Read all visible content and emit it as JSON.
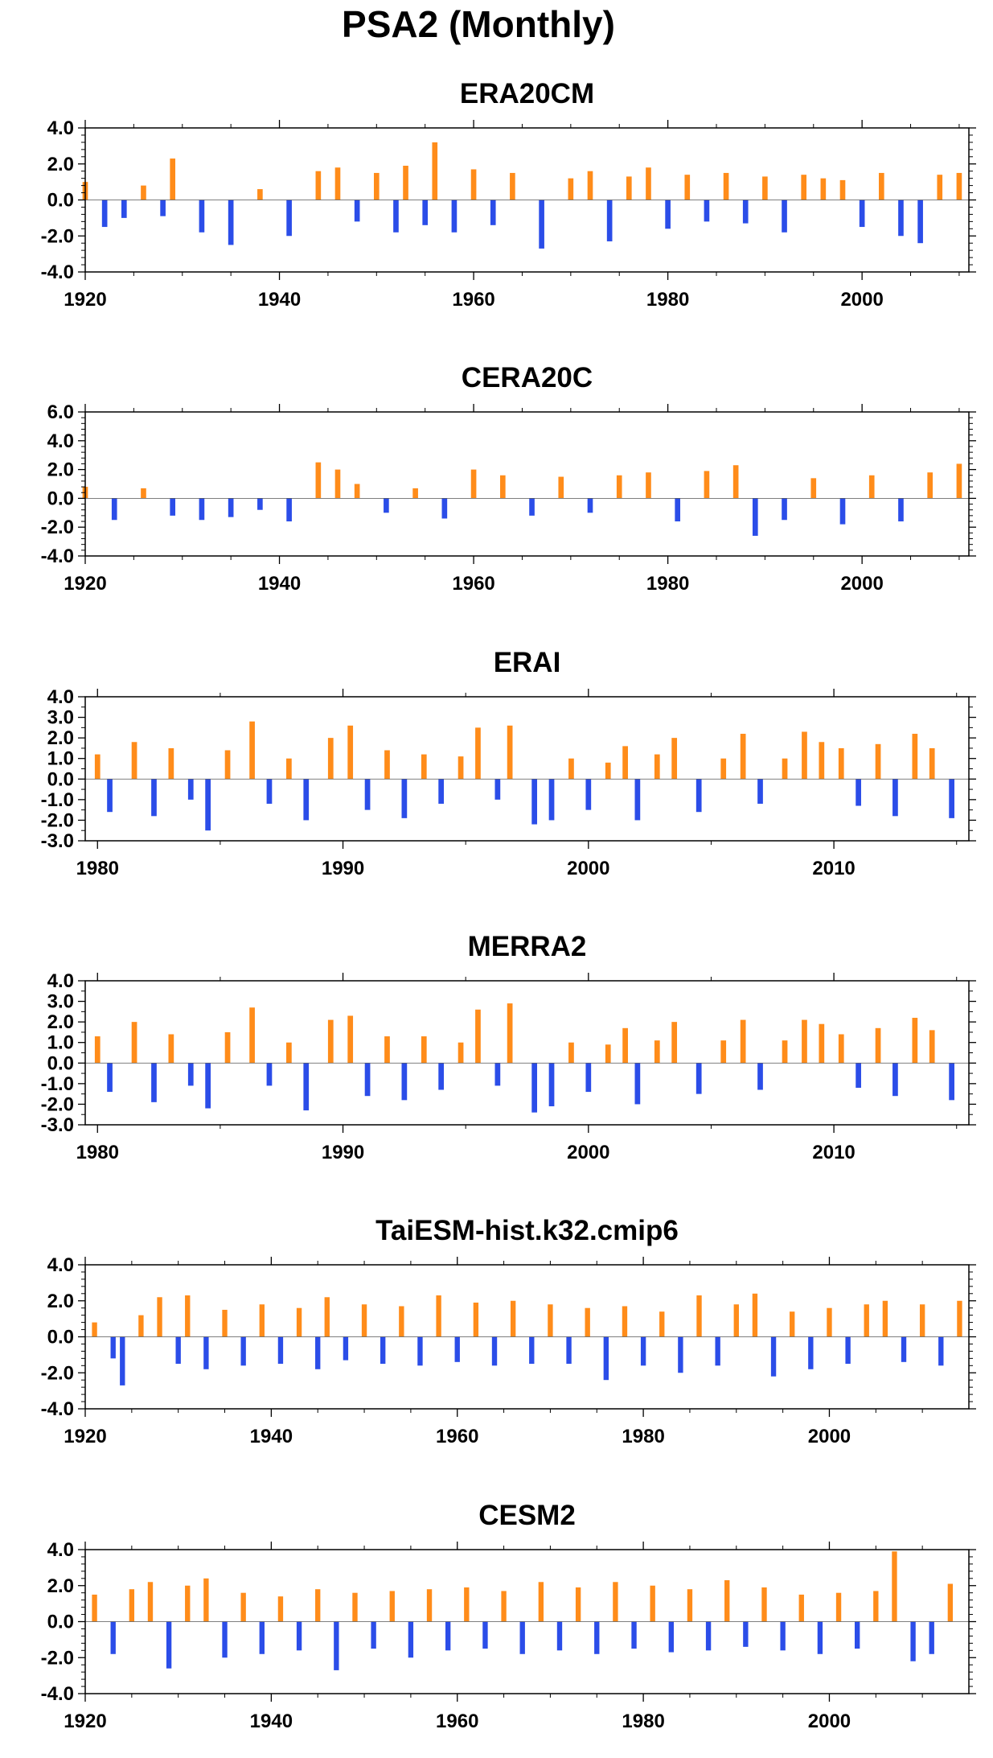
{
  "figure": {
    "title": "PSA2 (Monthly)",
    "positive_color": "#ff8c1a",
    "negative_color": "#2b4de8",
    "axis_color": "#000000"
  },
  "chart_data": [
    {
      "type": "bar",
      "title": "ERA20CM",
      "xlabel": "",
      "ylabel": "",
      "xlim": [
        1920,
        2011
      ],
      "ylim": [
        -4.0,
        4.0
      ],
      "xticks": [
        1920,
        1940,
        1960,
        1980,
        2000
      ],
      "yticks": [
        -4.0,
        -2.0,
        0.0,
        2.0,
        4.0
      ],
      "ytick_labels": [
        "-4.0",
        "-2.0",
        "0.0",
        "2.0",
        "4.0"
      ],
      "grid": false,
      "series": [
        {
          "x": [
            1920,
            1922,
            1924,
            1926,
            1928,
            1929,
            1932,
            1935,
            1938,
            1941,
            1944,
            1946,
            1948,
            1950,
            1952,
            1953,
            1955,
            1956,
            1958,
            1960,
            1962,
            1964,
            1967,
            1970,
            1972,
            1974,
            1976,
            1978,
            1980,
            1982,
            1984,
            1986,
            1988,
            1990,
            1992,
            1994,
            1996,
            1998,
            2000,
            2002,
            2004,
            2006,
            2008,
            2010
          ],
          "values": [
            1.0,
            -1.5,
            -1.0,
            0.8,
            -0.9,
            2.3,
            -1.8,
            -2.5,
            0.6,
            -2.0,
            1.6,
            1.8,
            -1.2,
            1.5,
            -1.8,
            1.9,
            -1.4,
            3.2,
            -1.8,
            1.7,
            -1.4,
            1.5,
            -2.7,
            1.2,
            1.6,
            -2.3,
            1.3,
            1.8,
            -1.6,
            1.4,
            -1.2,
            1.5,
            -1.3,
            1.3,
            -1.8,
            1.4,
            1.2,
            1.1,
            -1.5,
            1.5,
            -2.0,
            -2.4,
            1.4,
            1.5
          ]
        }
      ]
    },
    {
      "type": "bar",
      "title": "CERA20C",
      "xlabel": "",
      "ylabel": "",
      "xlim": [
        1920,
        2011
      ],
      "ylim": [
        -4.0,
        6.0
      ],
      "xticks": [
        1920,
        1940,
        1960,
        1980,
        2000
      ],
      "yticks": [
        -4.0,
        -2.0,
        0.0,
        2.0,
        4.0,
        6.0
      ],
      "ytick_labels": [
        "-4.0",
        "-2.0",
        "0.0",
        "2.0",
        "4.0",
        "6.0"
      ],
      "grid": false,
      "series": [
        {
          "x": [
            1920,
            1923,
            1926,
            1929,
            1932,
            1935,
            1938,
            1941,
            1944,
            1946,
            1948,
            1951,
            1954,
            1957,
            1960,
            1963,
            1966,
            1969,
            1972,
            1975,
            1978,
            1981,
            1984,
            1987,
            1989,
            1992,
            1995,
            1998,
            2001,
            2004,
            2007,
            2010
          ],
          "values": [
            0.8,
            -1.5,
            0.7,
            -1.2,
            -1.5,
            -1.3,
            -0.8,
            -1.6,
            2.5,
            2.0,
            1.0,
            -1.0,
            0.7,
            -1.4,
            2.0,
            1.6,
            -1.2,
            1.5,
            -1.0,
            1.6,
            1.8,
            -1.6,
            1.9,
            2.3,
            -2.6,
            -1.5,
            1.4,
            -1.8,
            1.6,
            -1.6,
            1.8,
            2.4
          ]
        }
      ]
    },
    {
      "type": "bar",
      "title": "ERAI",
      "xlabel": "",
      "ylabel": "",
      "xlim": [
        1979.5,
        2015.5
      ],
      "ylim": [
        -3.0,
        4.0
      ],
      "xticks": [
        1980,
        1990,
        2000,
        2010
      ],
      "yticks": [
        -3.0,
        -2.0,
        -1.0,
        0.0,
        1.0,
        2.0,
        3.0,
        4.0
      ],
      "ytick_labels": [
        "-3.0",
        "-2.0",
        "-1.0",
        "0.0",
        "1.0",
        "2.0",
        "3.0",
        "4.0"
      ],
      "grid": false,
      "series": [
        {
          "x": [
            1980.0,
            1980.5,
            1981.5,
            1982.3,
            1983.0,
            1983.8,
            1984.5,
            1985.3,
            1986.3,
            1987.0,
            1987.8,
            1988.5,
            1989.5,
            1990.3,
            1991.0,
            1991.8,
            1992.5,
            1993.3,
            1994.0,
            1994.8,
            1995.5,
            1996.3,
            1996.8,
            1997.8,
            1998.5,
            1999.3,
            2000.0,
            2000.8,
            2001.5,
            2002.0,
            2002.8,
            2003.5,
            2004.5,
            2005.5,
            2006.3,
            2007.0,
            2008.0,
            2008.8,
            2009.5,
            2010.3,
            2011.0,
            2011.8,
            2012.5,
            2013.3,
            2014.0,
            2014.8
          ],
          "values": [
            1.2,
            -1.6,
            1.8,
            -1.8,
            1.5,
            -1.0,
            -2.5,
            1.4,
            2.8,
            -1.2,
            1.0,
            -2.0,
            2.0,
            2.6,
            -1.5,
            1.4,
            -1.9,
            1.2,
            -1.2,
            1.1,
            2.5,
            -1.0,
            2.6,
            -2.2,
            -2.0,
            1.0,
            -1.5,
            0.8,
            1.6,
            -2.0,
            1.2,
            2.0,
            -1.6,
            1.0,
            2.2,
            -1.2,
            1.0,
            2.3,
            1.8,
            1.5,
            -1.3,
            1.7,
            -1.8,
            2.2,
            1.5,
            -1.9
          ]
        }
      ]
    },
    {
      "type": "bar",
      "title": "MERRA2",
      "xlabel": "",
      "ylabel": "",
      "xlim": [
        1979.5,
        2015.5
      ],
      "ylim": [
        -3.0,
        4.0
      ],
      "xticks": [
        1980,
        1990,
        2000,
        2010
      ],
      "yticks": [
        -3.0,
        -2.0,
        -1.0,
        0.0,
        1.0,
        2.0,
        3.0,
        4.0
      ],
      "ytick_labels": [
        "-3.0",
        "-2.0",
        "-1.0",
        "0.0",
        "1.0",
        "2.0",
        "3.0",
        "4.0"
      ],
      "grid": false,
      "series": [
        {
          "x": [
            1980.0,
            1980.5,
            1981.5,
            1982.3,
            1983.0,
            1983.8,
            1984.5,
            1985.3,
            1986.3,
            1987.0,
            1987.8,
            1988.5,
            1989.5,
            1990.3,
            1991.0,
            1991.8,
            1992.5,
            1993.3,
            1994.0,
            1994.8,
            1995.5,
            1996.3,
            1996.8,
            1997.8,
            1998.5,
            1999.3,
            2000.0,
            2000.8,
            2001.5,
            2002.0,
            2002.8,
            2003.5,
            2004.5,
            2005.5,
            2006.3,
            2007.0,
            2008.0,
            2008.8,
            2009.5,
            2010.3,
            2011.0,
            2011.8,
            2012.5,
            2013.3,
            2014.0,
            2014.8
          ],
          "values": [
            1.3,
            -1.4,
            2.0,
            -1.9,
            1.4,
            -1.1,
            -2.2,
            1.5,
            2.7,
            -1.1,
            1.0,
            -2.3,
            2.1,
            2.3,
            -1.6,
            1.3,
            -1.8,
            1.3,
            -1.3,
            1.0,
            2.6,
            -1.1,
            2.9,
            -2.4,
            -2.1,
            1.0,
            -1.4,
            0.9,
            1.7,
            -2.0,
            1.1,
            2.0,
            -1.5,
            1.1,
            2.1,
            -1.3,
            1.1,
            2.1,
            1.9,
            1.4,
            -1.2,
            1.7,
            -1.6,
            2.2,
            1.6,
            -1.8
          ]
        }
      ]
    },
    {
      "type": "bar",
      "title": "TaiESM-hist.k32.cmip6",
      "xlabel": "",
      "ylabel": "",
      "xlim": [
        1920,
        2015
      ],
      "ylim": [
        -4.0,
        4.0
      ],
      "xticks": [
        1920,
        1940,
        1960,
        1980,
        2000
      ],
      "yticks": [
        -4.0,
        -2.0,
        0.0,
        2.0,
        4.0
      ],
      "ytick_labels": [
        "-4.0",
        "-2.0",
        "0.0",
        "2.0",
        "4.0"
      ],
      "grid": false,
      "series": [
        {
          "x": [
            1921,
            1923,
            1924,
            1926,
            1928,
            1930,
            1931,
            1933,
            1935,
            1937,
            1939,
            1941,
            1943,
            1945,
            1946,
            1948,
            1950,
            1952,
            1954,
            1956,
            1958,
            1960,
            1962,
            1964,
            1966,
            1968,
            1970,
            1972,
            1974,
            1976,
            1978,
            1980,
            1982,
            1984,
            1986,
            1988,
            1990,
            1992,
            1994,
            1996,
            1998,
            2000,
            2002,
            2004,
            2006,
            2008,
            2010,
            2012,
            2014
          ],
          "values": [
            0.8,
            -1.2,
            -2.7,
            1.2,
            2.2,
            -1.5,
            2.3,
            -1.8,
            1.5,
            -1.6,
            1.8,
            -1.5,
            1.6,
            -1.8,
            2.2,
            -1.3,
            1.8,
            -1.5,
            1.7,
            -1.6,
            2.3,
            -1.4,
            1.9,
            -1.6,
            2.0,
            -1.5,
            1.8,
            -1.5,
            1.6,
            -2.4,
            1.7,
            -1.6,
            1.4,
            -2.0,
            2.3,
            -1.6,
            1.8,
            2.4,
            -2.2,
            1.4,
            -1.8,
            1.6,
            -1.5,
            1.8,
            2.0,
            -1.4,
            1.8,
            -1.6,
            2.0
          ]
        }
      ]
    },
    {
      "type": "bar",
      "title": "CESM2",
      "xlabel": "",
      "ylabel": "",
      "xlim": [
        1920,
        2015
      ],
      "ylim": [
        -4.0,
        4.0
      ],
      "xticks": [
        1920,
        1940,
        1960,
        1980,
        2000
      ],
      "yticks": [
        -4.0,
        -2.0,
        0.0,
        2.0,
        4.0
      ],
      "ytick_labels": [
        "-4.0",
        "-2.0",
        "0.0",
        "2.0",
        "4.0"
      ],
      "grid": false,
      "series": [
        {
          "x": [
            1921,
            1923,
            1925,
            1927,
            1929,
            1931,
            1933,
            1935,
            1937,
            1939,
            1941,
            1943,
            1945,
            1947,
            1949,
            1951,
            1953,
            1955,
            1957,
            1959,
            1961,
            1963,
            1965,
            1967,
            1969,
            1971,
            1973,
            1975,
            1977,
            1979,
            1981,
            1983,
            1985,
            1987,
            1989,
            1991,
            1993,
            1995,
            1997,
            1999,
            2001,
            2003,
            2005,
            2007,
            2009,
            2011,
            2013
          ],
          "values": [
            1.5,
            -1.8,
            1.8,
            2.2,
            -2.6,
            2.0,
            2.4,
            -2.0,
            1.6,
            -1.8,
            1.4,
            -1.6,
            1.8,
            -2.7,
            1.6,
            -1.5,
            1.7,
            -2.0,
            1.8,
            -1.6,
            1.9,
            -1.5,
            1.7,
            -1.8,
            2.2,
            -1.6,
            1.9,
            -1.8,
            2.2,
            -1.5,
            2.0,
            -1.7,
            1.8,
            -1.6,
            2.3,
            -1.4,
            1.9,
            -1.6,
            1.5,
            -1.8,
            1.6,
            -1.5,
            1.7,
            3.9,
            -2.2,
            -1.8,
            2.1
          ]
        }
      ]
    }
  ]
}
